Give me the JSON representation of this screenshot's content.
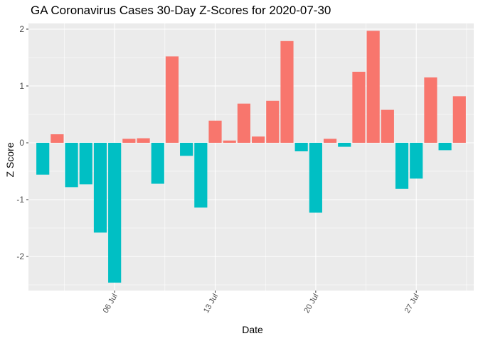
{
  "chart_data": {
    "type": "bar",
    "title": "GA Coronavirus Cases 30-Day Z-Scores for 2020-07-30",
    "xlabel": "Date",
    "ylabel": "Z Score",
    "ylim": [
      -2.6,
      2.1
    ],
    "y_ticks": [
      -2,
      -1,
      0,
      1,
      2
    ],
    "y_tick_labels": [
      "-2",
      "-1",
      "0",
      "1",
      "2"
    ],
    "x_ticks": [
      {
        "date": "2020-07-06",
        "label": "06 Jul"
      },
      {
        "date": "2020-07-13",
        "label": "13 Jul"
      },
      {
        "date": "2020-07-20",
        "label": "20 Jul"
      },
      {
        "date": "2020-07-27",
        "label": "27 Jul"
      }
    ],
    "x_range": [
      "2020-06-30",
      "2020-07-31"
    ],
    "categories": [
      "2020-07-01",
      "2020-07-02",
      "2020-07-03",
      "2020-07-04",
      "2020-07-05",
      "2020-07-06",
      "2020-07-07",
      "2020-07-08",
      "2020-07-09",
      "2020-07-10",
      "2020-07-11",
      "2020-07-12",
      "2020-07-13",
      "2020-07-14",
      "2020-07-15",
      "2020-07-16",
      "2020-07-17",
      "2020-07-18",
      "2020-07-19",
      "2020-07-20",
      "2020-07-21",
      "2020-07-22",
      "2020-07-23",
      "2020-07-24",
      "2020-07-25",
      "2020-07-26",
      "2020-07-27",
      "2020-07-28",
      "2020-07-29",
      "2020-07-30"
    ],
    "values": [
      -0.56,
      0.15,
      -0.78,
      -0.73,
      -1.58,
      -2.46,
      0.07,
      0.08,
      -0.72,
      1.52,
      -0.23,
      -1.14,
      0.39,
      0.04,
      0.69,
      0.11,
      0.74,
      1.79,
      -0.15,
      -1.23,
      0.07,
      -0.07,
      1.25,
      1.97,
      0.58,
      -0.81,
      -0.63,
      1.15,
      -0.13,
      0.82
    ],
    "colors": {
      "positive": "#F8766D",
      "negative": "#00BFC4"
    },
    "panel_background": "#EBEBEB",
    "grid_color": "#FFFFFF"
  }
}
